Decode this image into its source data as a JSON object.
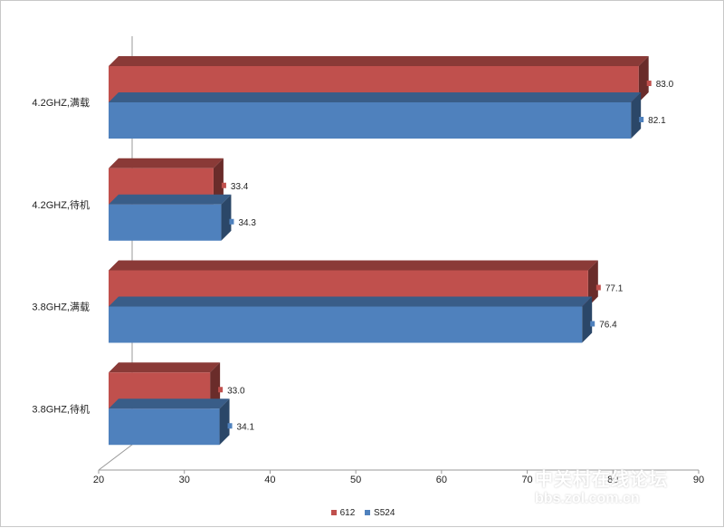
{
  "chart_data": {
    "type": "bar",
    "orientation": "horizontal",
    "style": "3d-clustered",
    "categories": [
      "4.2GHZ,满载",
      "4.2GHZ,待机",
      "3.8GHZ,满载",
      "3.8GHZ,待机"
    ],
    "series": [
      {
        "name": "612",
        "color": "#c0504d",
        "values": [
          83.0,
          33.4,
          77.1,
          33.0
        ]
      },
      {
        "name": "S524",
        "color": "#4f81bd",
        "values": [
          82.1,
          34.3,
          76.4,
          34.1
        ]
      }
    ],
    "xlim": [
      20,
      90
    ],
    "xticks": [
      20,
      30,
      40,
      50,
      60,
      70,
      80,
      90
    ],
    "title": "",
    "xlabel": "",
    "ylabel": "",
    "grid": false,
    "legend": "bottom",
    "data_labels": true
  },
  "watermark": {
    "line1": "中关村在线论坛",
    "line2": "bbs.zol.com.cn"
  }
}
